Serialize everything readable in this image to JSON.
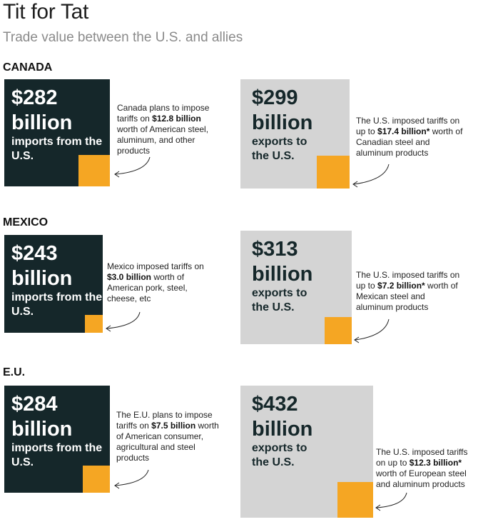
{
  "title": "Tit for Tat",
  "subtitle": "Trade value between the U.S. and allies",
  "colors": {
    "imports_box": "#15272a",
    "exports_box": "#d4d4d4",
    "tariff_box": "#f5a623"
  },
  "chart_data": {
    "type": "area",
    "unit": "billion USD",
    "countries": [
      {
        "label": "CANADA",
        "imports_from_us": {
          "value_text": "$282",
          "unit_text": "billion",
          "desc": "imports from the U.S.",
          "value": 282,
          "tariff": 12.8
        },
        "imports_note": {
          "pre": "Canada plans to impose tariffs on ",
          "bold": "$12.8 billion",
          "post": " worth of American steel, aluminum, and other products"
        },
        "exports_to_us": {
          "value_text": "$299",
          "unit_text": "billion",
          "desc": "exports to the U.S.",
          "value": 299,
          "tariff": 17.4
        },
        "exports_note": {
          "pre": "The U.S. imposed tariffs on up to ",
          "bold": "$17.4 billion*",
          "post": " worth of Canadian steel and aluminum products"
        }
      },
      {
        "label": "MEXICO",
        "imports_from_us": {
          "value_text": "$243",
          "unit_text": "billion",
          "desc": "imports from the U.S.",
          "value": 243,
          "tariff": 3.0
        },
        "imports_note": {
          "pre": "Mexico imposed tariffs on ",
          "bold": "$3.0 billion",
          "post": " worth of American pork, steel, cheese, etc"
        },
        "exports_to_us": {
          "value_text": "$313",
          "unit_text": "billion",
          "desc": "exports to the U.S.",
          "value": 313,
          "tariff": 7.2
        },
        "exports_note": {
          "pre": "The U.S. imposed tariffs on up to ",
          "bold": "$7.2 billion*",
          "post": " worth of Mexican steel and aluminum products"
        }
      },
      {
        "label": "E.U.",
        "imports_from_us": {
          "value_text": "$284",
          "unit_text": "billion",
          "desc": "imports from the U.S.",
          "value": 284,
          "tariff": 7.5
        },
        "imports_note": {
          "pre": "The E.U. plans to impose tariffs on ",
          "bold": "$7.5 billion",
          "post": " worth of American consumer, agricultural and steel products"
        },
        "exports_to_us": {
          "value_text": "$432",
          "unit_text": "billion",
          "desc": "exports to the U.S.",
          "value": 432,
          "tariff": 12.3
        },
        "exports_note": {
          "pre": "The U.S. imposed tariffs on up to ",
          "bold": "$12.3 billion*",
          "post": " worth of European steel and aluminum products"
        }
      }
    ]
  }
}
